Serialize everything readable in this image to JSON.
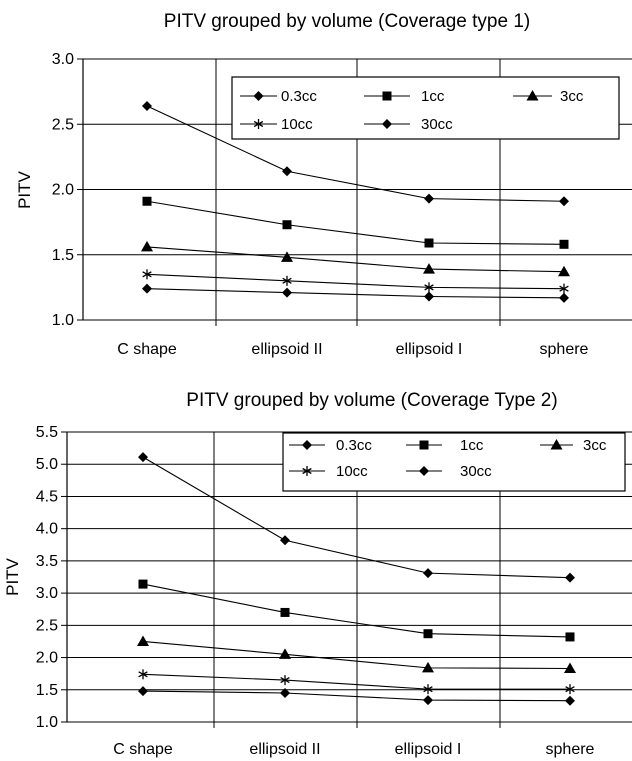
{
  "chart_data": [
    {
      "type": "line",
      "title": "PITV grouped by volume (Coverage type 1)",
      "xlabel": "",
      "ylabel": "PITV",
      "ylim": [
        1.0,
        3.0
      ],
      "yticks": [
        "1.0",
        "1.5",
        "2.0",
        "2.5",
        "3.0"
      ],
      "grid": "horizontal and vertical",
      "legend_position": "top-right",
      "categories": [
        "C shape",
        "ellipsoid II",
        "ellipsoid I",
        "sphere"
      ],
      "series": [
        {
          "name": "0.3cc",
          "marker": "diamond",
          "values": [
            1.24,
            1.21,
            1.18,
            1.17
          ]
        },
        {
          "name": "1cc",
          "marker": "square",
          "values": [
            1.91,
            1.73,
            1.59,
            1.58
          ]
        },
        {
          "name": "3cc",
          "marker": "triangle",
          "values": [
            1.56,
            1.48,
            1.39,
            1.37
          ]
        },
        {
          "name": "10cc",
          "marker": "star",
          "values": [
            1.35,
            1.3,
            1.25,
            1.24
          ]
        },
        {
          "name": "30cc",
          "marker": "diamond",
          "values": [
            2.64,
            2.14,
            1.93,
            1.91
          ]
        }
      ]
    },
    {
      "type": "line",
      "title": "PITV grouped by volume (Coverage Type 2)",
      "xlabel": "",
      "ylabel": "PITV",
      "ylim": [
        1.0,
        5.5
      ],
      "yticks": [
        "1.0",
        "1.5",
        "2.0",
        "2.5",
        "3.0",
        "3.5",
        "4.0",
        "4.5",
        "5.0",
        "5.5"
      ],
      "grid": "horizontal and vertical",
      "legend_position": "top-right",
      "categories": [
        "C shape",
        "ellipsoid II",
        "ellipsoid I",
        "sphere"
      ],
      "series": [
        {
          "name": "0.3cc",
          "marker": "diamond",
          "values": [
            1.48,
            1.45,
            1.34,
            1.33
          ]
        },
        {
          "name": "1cc",
          "marker": "square",
          "values": [
            3.14,
            2.7,
            2.37,
            2.32
          ]
        },
        {
          "name": "3cc",
          "marker": "triangle",
          "values": [
            2.25,
            2.05,
            1.84,
            1.83
          ]
        },
        {
          "name": "10cc",
          "marker": "star",
          "values": [
            1.74,
            1.65,
            1.51,
            1.51
          ]
        },
        {
          "name": "30cc",
          "marker": "diamond",
          "values": [
            5.11,
            3.82,
            3.31,
            3.24
          ]
        }
      ]
    }
  ]
}
